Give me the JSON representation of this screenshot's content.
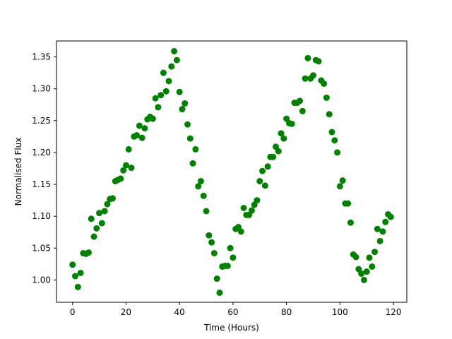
{
  "chart_data": {
    "type": "scatter",
    "title": "",
    "xlabel": "Time (Hours)",
    "ylabel": "Normalised Flux",
    "xlim": [
      -6,
      125
    ],
    "ylim": [
      0.965,
      1.375
    ],
    "xticks": [
      0,
      20,
      40,
      60,
      80,
      100,
      120
    ],
    "xtick_labels": [
      "0",
      "20",
      "40",
      "60",
      "80",
      "100",
      "120"
    ],
    "yticks": [
      1.0,
      1.05,
      1.1,
      1.15,
      1.2,
      1.25,
      1.3,
      1.35
    ],
    "ytick_labels": [
      "1.00",
      "1.05",
      "1.10",
      "1.15",
      "1.20",
      "1.25",
      "1.30",
      "1.35"
    ],
    "grid": false,
    "marker_color": "#008000",
    "series": [
      {
        "x": [
          0,
          1,
          2,
          3,
          4,
          5,
          6,
          7,
          8,
          9,
          10,
          11,
          12,
          13,
          14,
          15,
          16,
          17,
          18,
          19,
          20,
          21,
          22,
          23,
          24,
          25,
          26,
          27,
          28,
          29,
          30,
          31,
          32,
          33,
          34,
          35,
          36,
          37,
          38,
          39,
          40,
          41,
          42,
          43,
          44,
          45,
          46,
          47,
          48,
          49,
          50,
          51,
          52,
          53,
          54,
          55,
          56,
          57,
          58,
          59,
          60,
          61,
          62,
          63,
          64,
          65,
          66,
          67,
          68,
          69,
          70,
          71,
          72,
          73,
          74,
          75,
          76,
          77,
          78,
          79,
          80,
          81,
          82,
          83,
          84,
          85,
          86,
          87,
          88,
          89,
          90,
          91,
          92,
          93,
          94,
          95,
          96,
          97,
          98,
          99,
          100,
          101,
          102,
          103,
          104,
          105,
          106,
          107,
          108,
          109,
          110,
          111,
          112,
          113,
          114,
          115,
          116,
          117,
          118,
          119
        ],
        "y": [
          1.024,
          1.006,
          0.989,
          1.011,
          1.042,
          1.041,
          1.043,
          1.096,
          1.068,
          1.081,
          1.105,
          1.089,
          1.108,
          1.119,
          1.127,
          1.128,
          1.155,
          1.157,
          1.159,
          1.172,
          1.18,
          1.205,
          1.176,
          1.225,
          1.227,
          1.242,
          1.223,
          1.238,
          1.252,
          1.256,
          1.253,
          1.285,
          1.271,
          1.29,
          1.325,
          1.296,
          1.312,
          1.335,
          1.359,
          1.345,
          1.295,
          1.268,
          1.277,
          1.244,
          1.222,
          1.183,
          1.205,
          1.147,
          1.155,
          1.132,
          1.108,
          1.07,
          1.059,
          1.042,
          1.002,
          0.98,
          1.021,
          1.022,
          1.022,
          1.05,
          1.035,
          1.08,
          1.083,
          1.076,
          1.113,
          1.102,
          1.102,
          1.109,
          1.118,
          1.125,
          1.155,
          1.171,
          1.148,
          1.178,
          1.193,
          1.193,
          1.209,
          1.202,
          1.23,
          1.222,
          1.253,
          1.246,
          1.245,
          1.278,
          1.278,
          1.281,
          1.265,
          1.316,
          1.348,
          1.316,
          1.321,
          1.345,
          1.343,
          1.313,
          1.308,
          1.286,
          1.26,
          1.232,
          1.219,
          1.2,
          1.147,
          1.156,
          1.12,
          1.12,
          1.09,
          1.04,
          1.036,
          1.017,
          1.01,
          1.0,
          1.013,
          1.035,
          1.021,
          1.044,
          1.08,
          1.061,
          1.076,
          1.091,
          1.103,
          1.099
        ]
      }
    ]
  }
}
